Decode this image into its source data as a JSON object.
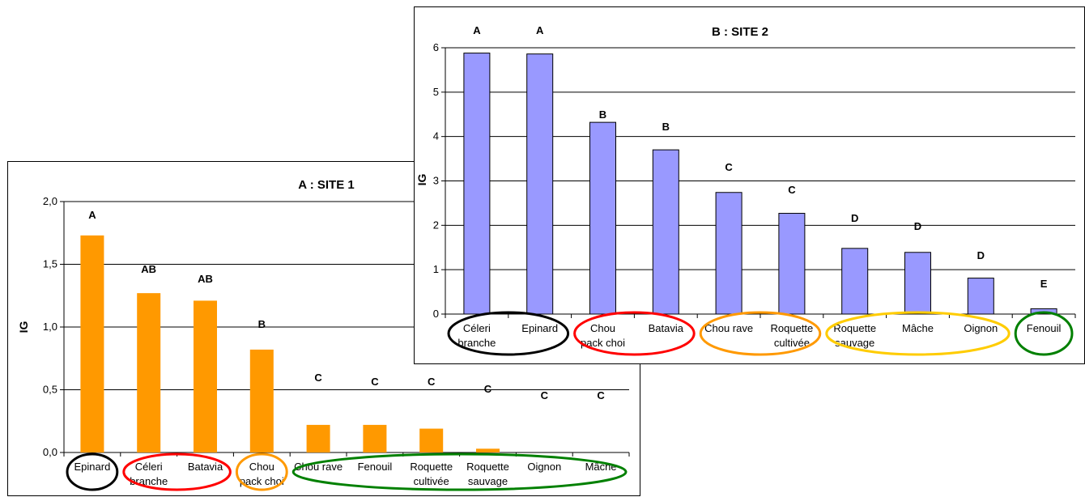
{
  "chart_data": [
    {
      "type": "bar",
      "title": "A : SITE 1",
      "xlabel": "",
      "ylabel": "IG",
      "ylim": [
        0,
        2
      ],
      "yticks": [
        "0,0",
        "0,5",
        "1,0",
        "1,5",
        "2,0"
      ],
      "grid": true,
      "bar_color": "#FF9900",
      "categories": [
        "Epinard",
        "Céleri branche",
        "Batavia",
        "Chou pack choi",
        "Chou rave",
        "Fenouil",
        "Roquette cultivée",
        "Roquette sauvage",
        "Oignon",
        "Mâche"
      ],
      "values": [
        1.73,
        1.27,
        1.21,
        0.82,
        0.22,
        0.22,
        0.19,
        0.03,
        0.0,
        0.0
      ],
      "significance_letters": [
        "A",
        "AB",
        "AB",
        "B",
        "C",
        "C",
        "C",
        "C",
        "C",
        "C"
      ],
      "groups": [
        {
          "members": [
            "Epinard"
          ],
          "color": "#000000"
        },
        {
          "members": [
            "Céleri branche",
            "Batavia"
          ],
          "color": "#FF0000"
        },
        {
          "members": [
            "Chou pack choi"
          ],
          "color": "#FF9900"
        },
        {
          "members": [
            "Chou rave",
            "Fenouil",
            "Roquette cultivée",
            "Roquette sauvage",
            "Oignon",
            "Mâche"
          ],
          "color": "#008000"
        }
      ]
    },
    {
      "type": "bar",
      "title": "B : SITE 2",
      "xlabel": "",
      "ylabel": "IG",
      "ylim": [
        0,
        6
      ],
      "yticks": [
        "0",
        "1",
        "2",
        "3",
        "4",
        "5",
        "6"
      ],
      "grid": true,
      "bar_color": "#9999FF",
      "categories": [
        "Céleri branche",
        "Epinard",
        "Chou pack choi",
        "Batavia",
        "Chou rave",
        "Roquette cultivée",
        "Roquette sauvage",
        "Mâche",
        "Oignon",
        "Fenouil"
      ],
      "values": [
        5.88,
        5.86,
        4.32,
        3.7,
        2.74,
        2.27,
        1.48,
        1.39,
        0.81,
        0.12
      ],
      "significance_letters": [
        "A",
        "A",
        "B",
        "B",
        "C",
        "C",
        "D",
        "D",
        "D",
        "E"
      ],
      "groups": [
        {
          "members": [
            "Céleri branche",
            "Epinard"
          ],
          "color": "#000000"
        },
        {
          "members": [
            "Chou pack choi",
            "Batavia"
          ],
          "color": "#FF0000"
        },
        {
          "members": [
            "Chou rave",
            "Roquette cultivée"
          ],
          "color": "#FF9900"
        },
        {
          "members": [
            "Roquette sauvage",
            "Mâche",
            "Oignon"
          ],
          "color": "#FFCC00"
        },
        {
          "members": [
            "Fenouil"
          ],
          "color": "#008000"
        }
      ]
    }
  ]
}
